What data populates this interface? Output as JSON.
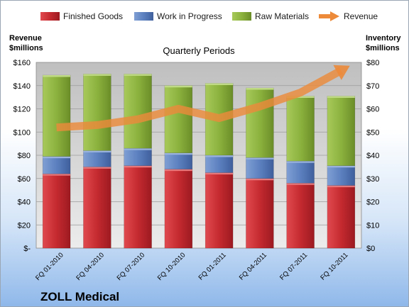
{
  "chart_data": {
    "type": "bar",
    "stacked": true,
    "title": "Quarterly Periods",
    "brand": "ZOLL Medical",
    "left_axis_label": [
      "Revenue",
      "$millions"
    ],
    "right_axis_label": [
      "Inventory",
      "$millions"
    ],
    "categories": [
      "FQ 01-2010",
      "FQ 04-2010",
      "FQ 07-2010",
      "FQ 10-2010",
      "FQ 01-2011",
      "FQ 04-2011",
      "FQ 07-2011",
      "FQ 10-2011"
    ],
    "left_ticks": [
      "$-",
      "$20",
      "$40",
      "$60",
      "$80",
      "$100",
      "$120",
      "$140",
      "$160"
    ],
    "right_ticks": [
      "$0",
      "$10",
      "$20",
      "$30",
      "$40",
      "$50",
      "$60",
      "$70",
      "$80"
    ],
    "left_ylim": [
      0,
      160
    ],
    "right_ylim": [
      0,
      80
    ],
    "series": [
      {
        "name": "Finished Goods",
        "axis": "right",
        "color": "#c0272d",
        "values": [
          32,
          35,
          35.5,
          34,
          32.5,
          30,
          28,
          27
        ]
      },
      {
        "name": "Work in Progress",
        "axis": "right",
        "color": "#5a7fbd",
        "values": [
          7.5,
          7,
          7.5,
          7,
          7.5,
          9,
          9.5,
          8.5
        ]
      },
      {
        "name": "Raw Materials",
        "axis": "right",
        "color": "#8caf3c",
        "values": [
          35,
          33,
          32,
          29,
          31,
          30,
          28,
          30
        ]
      },
      {
        "name": "Revenue",
        "axis": "left",
        "type": "line",
        "color": "#ec8a3a",
        "values": [
          104,
          106,
          111,
          120,
          112,
          122,
          134,
          153
        ]
      }
    ],
    "grid": true,
    "legend_position": "top"
  }
}
